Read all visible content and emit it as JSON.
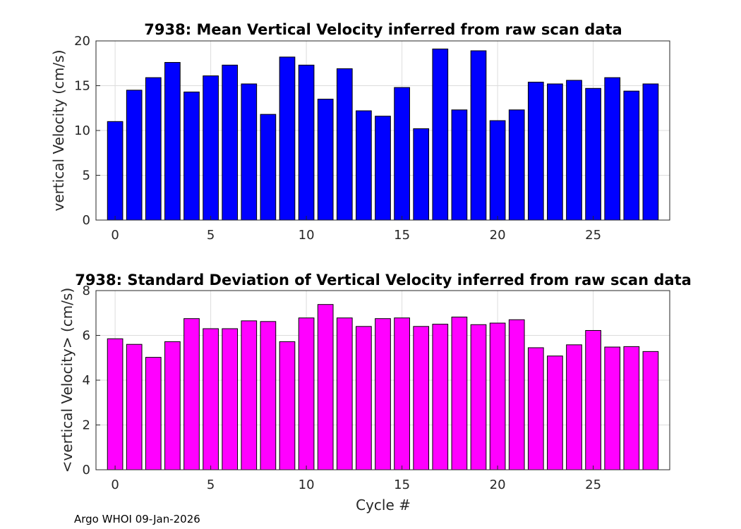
{
  "chart_data": [
    {
      "type": "bar",
      "title": "7938: Mean Vertical Velocity inferred from raw scan data",
      "xlabel": "",
      "ylabel": "vertical Velocity (cm/s)",
      "xlim": [
        -1,
        29
      ],
      "ylim": [
        0,
        20
      ],
      "xticks": [
        0,
        5,
        10,
        15,
        20,
        25
      ],
      "yticks": [
        0,
        5,
        10,
        15,
        20
      ],
      "grid": true,
      "color": "#0000ff",
      "x": [
        0,
        1,
        2,
        3,
        4,
        5,
        6,
        7,
        8,
        9,
        10,
        11,
        12,
        13,
        14,
        15,
        16,
        17,
        18,
        19,
        20,
        21,
        22,
        23,
        24,
        25,
        26,
        27,
        28
      ],
      "values": [
        11.0,
        14.5,
        15.9,
        17.6,
        14.3,
        16.1,
        17.3,
        15.2,
        11.8,
        18.2,
        17.3,
        13.5,
        16.9,
        12.2,
        11.6,
        14.8,
        10.2,
        19.1,
        12.3,
        18.9,
        11.1,
        12.3,
        15.4,
        15.2,
        15.6,
        14.7,
        15.9,
        14.4,
        15.2
      ]
    },
    {
      "type": "bar",
      "title": "7938: Standard Deviation of Vertical Velocity inferred from raw scan data",
      "xlabel": "Cycle #",
      "ylabel": "<vertical Velocity> (cm/s)",
      "xlim": [
        -1,
        29
      ],
      "ylim": [
        0,
        8
      ],
      "xticks": [
        0,
        5,
        10,
        15,
        20,
        25
      ],
      "yticks": [
        0,
        2,
        4,
        6,
        8
      ],
      "grid": true,
      "color": "#ff00ff",
      "x": [
        0,
        1,
        2,
        3,
        4,
        5,
        6,
        7,
        8,
        9,
        10,
        11,
        12,
        13,
        14,
        15,
        16,
        17,
        18,
        19,
        20,
        21,
        22,
        23,
        24,
        25,
        26,
        27,
        28
      ],
      "values": [
        5.85,
        5.6,
        5.02,
        5.72,
        6.75,
        6.3,
        6.3,
        6.65,
        6.62,
        5.72,
        6.78,
        7.38,
        6.78,
        6.4,
        6.75,
        6.78,
        6.4,
        6.5,
        6.82,
        6.48,
        6.55,
        6.7,
        5.45,
        5.08,
        5.58,
        6.22,
        5.48,
        5.5,
        5.28
      ]
    }
  ],
  "footer": {
    "text": "Argo WHOI 09-Jan-2026"
  }
}
